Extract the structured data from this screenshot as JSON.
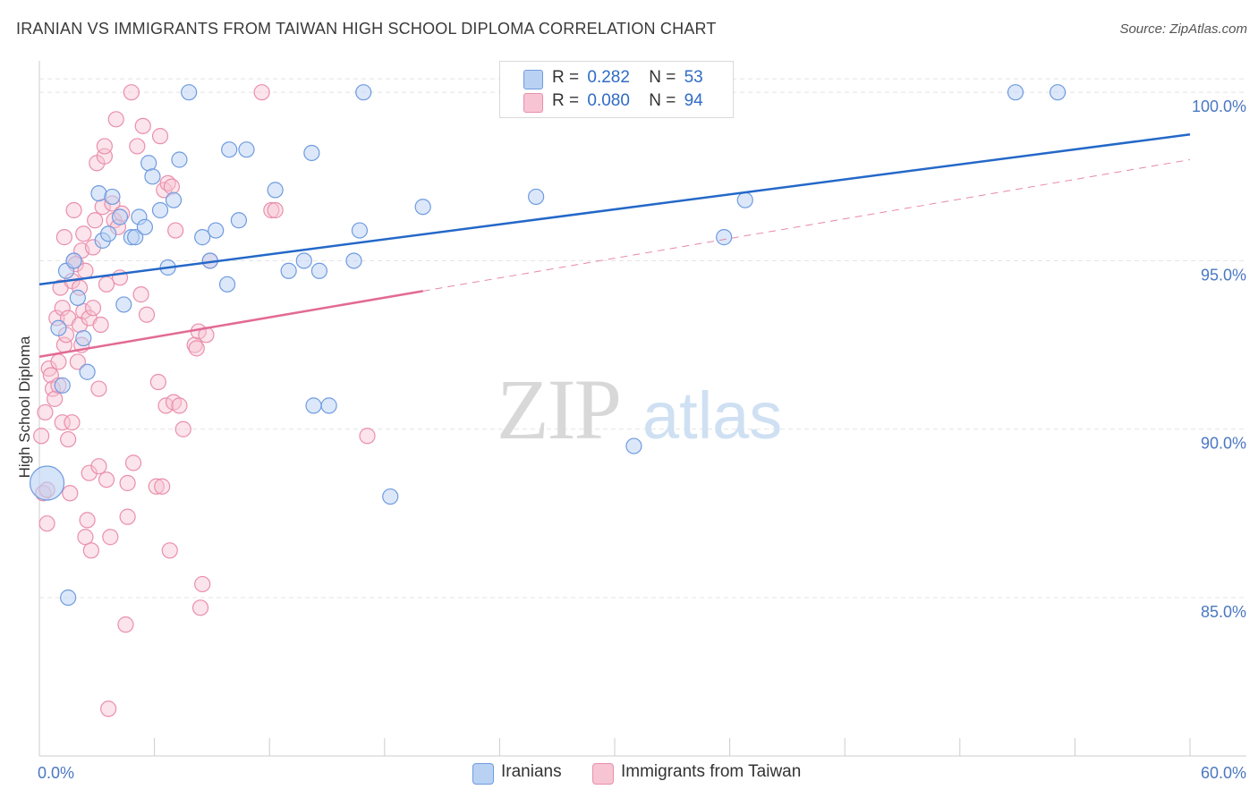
{
  "title": "IRANIAN VS IMMIGRANTS FROM TAIWAN HIGH SCHOOL DIPLOMA CORRELATION CHART",
  "source": "Source: ZipAtlas.com",
  "watermark": {
    "zip": "ZIP",
    "atlas": "atlas"
  },
  "legend": {
    "rows": [
      {
        "r_label": "R =",
        "r_value": "0.282",
        "n_label": "N =",
        "n_value": "53"
      },
      {
        "r_label": "R =",
        "r_value": "0.080",
        "n_label": "N =",
        "n_value": "94"
      }
    ]
  },
  "bottom_legend": {
    "iranians": "Iranians",
    "taiwan": "Immigrants from Taiwan"
  },
  "colors": {
    "blue_fill": "#b9d2f3",
    "blue_stroke": "#6f9be0",
    "blue_line": "#2468c8",
    "pink_fill": "#f7c4d3",
    "pink_stroke": "#ea8fac",
    "pink_line": "#e26a94",
    "grid": "#e4e4e4",
    "axis": "#cccccc",
    "tick_text": "#4a78c2"
  },
  "chart_data": {
    "type": "scatter",
    "title": "IRANIAN VS IMMIGRANTS FROM TAIWAN HIGH SCHOOL DIPLOMA CORRELATION CHART",
    "xlabel": "",
    "ylabel": "High School Diploma",
    "xlim": [
      0,
      60
    ],
    "ylim": [
      80.3,
      101.2
    ],
    "x_tick_labels": [
      "0.0%",
      "60.0%"
    ],
    "y_ticks": [
      85,
      90,
      95,
      100
    ],
    "y_tick_labels": [
      "85.0%",
      "90.0%",
      "95.0%",
      "100.0%"
    ],
    "legend_position": "top-center",
    "series": [
      {
        "name": "Iranians",
        "r": 0.282,
        "n": 53,
        "trend": {
          "x0": 0,
          "y0": 94.3,
          "x1": 60,
          "y1": 98.75,
          "dashed_to": null
        },
        "points": [
          [
            0.4,
            88.4
          ],
          [
            1.4,
            94.7
          ],
          [
            1.0,
            93.0
          ],
          [
            1.2,
            91.3
          ],
          [
            1.5,
            85.0
          ],
          [
            1.8,
            95.0
          ],
          [
            2.0,
            93.9
          ],
          [
            2.3,
            92.7
          ],
          [
            2.5,
            91.7
          ],
          [
            3.1,
            97.0
          ],
          [
            3.3,
            95.6
          ],
          [
            3.6,
            95.8
          ],
          [
            3.8,
            96.9
          ],
          [
            4.2,
            96.3
          ],
          [
            4.4,
            93.7
          ],
          [
            4.8,
            95.7
          ],
          [
            5.0,
            95.7
          ],
          [
            5.2,
            96.3
          ],
          [
            5.5,
            96.0
          ],
          [
            5.7,
            97.9
          ],
          [
            5.9,
            97.5
          ],
          [
            6.3,
            96.5
          ],
          [
            6.7,
            94.8
          ],
          [
            7.0,
            96.8
          ],
          [
            7.3,
            98.0
          ],
          [
            7.8,
            100.0
          ],
          [
            8.5,
            95.7
          ],
          [
            8.9,
            95.0
          ],
          [
            9.2,
            95.9
          ],
          [
            9.8,
            94.3
          ],
          [
            9.9,
            98.3
          ],
          [
            10.4,
            96.2
          ],
          [
            10.8,
            98.3
          ],
          [
            12.3,
            97.1
          ],
          [
            13.0,
            94.7
          ],
          [
            13.8,
            95.0
          ],
          [
            14.2,
            98.2
          ],
          [
            14.3,
            90.7
          ],
          [
            14.6,
            94.7
          ],
          [
            15.1,
            90.7
          ],
          [
            16.4,
            95.0
          ],
          [
            16.7,
            95.9
          ],
          [
            16.9,
            100.0
          ],
          [
            18.3,
            88.0
          ],
          [
            20.0,
            96.6
          ],
          [
            25.9,
            96.9
          ],
          [
            31.0,
            89.5
          ],
          [
            35.7,
            95.7
          ],
          [
            36.8,
            96.8
          ],
          [
            50.9,
            100.0
          ],
          [
            53.1,
            100.0
          ]
        ]
      },
      {
        "name": "Immigrants from Taiwan",
        "r": 0.08,
        "n": 94,
        "trend": {
          "x0": 0,
          "y0": 92.15,
          "x1": 20,
          "y1": 94.1,
          "dashed_to": {
            "x": 60,
            "y": 98.0
          }
        },
        "points": [
          [
            0.1,
            89.8
          ],
          [
            0.2,
            88.1
          ],
          [
            0.3,
            90.5
          ],
          [
            0.4,
            88.2
          ],
          [
            0.4,
            87.2
          ],
          [
            0.5,
            91.8
          ],
          [
            0.6,
            91.6
          ],
          [
            0.7,
            91.2
          ],
          [
            0.8,
            90.9
          ],
          [
            0.9,
            93.3
          ],
          [
            1.0,
            91.3
          ],
          [
            1.0,
            92.0
          ],
          [
            1.1,
            94.2
          ],
          [
            1.2,
            93.6
          ],
          [
            1.2,
            90.2
          ],
          [
            1.3,
            95.7
          ],
          [
            1.3,
            92.5
          ],
          [
            1.4,
            92.8
          ],
          [
            1.5,
            93.3
          ],
          [
            1.5,
            89.7
          ],
          [
            1.6,
            88.1
          ],
          [
            1.7,
            94.4
          ],
          [
            1.7,
            90.2
          ],
          [
            1.8,
            95.0
          ],
          [
            1.8,
            96.5
          ],
          [
            1.9,
            94.9
          ],
          [
            2.0,
            92.0
          ],
          [
            2.1,
            94.2
          ],
          [
            2.1,
            93.1
          ],
          [
            2.2,
            95.3
          ],
          [
            2.2,
            92.5
          ],
          [
            2.3,
            95.8
          ],
          [
            2.3,
            93.5
          ],
          [
            2.4,
            94.7
          ],
          [
            2.4,
            86.8
          ],
          [
            2.5,
            87.3
          ],
          [
            2.6,
            93.3
          ],
          [
            2.6,
            88.7
          ],
          [
            2.7,
            86.4
          ],
          [
            2.8,
            95.4
          ],
          [
            2.8,
            93.6
          ],
          [
            2.9,
            96.2
          ],
          [
            3.0,
            97.9
          ],
          [
            3.1,
            91.2
          ],
          [
            3.1,
            88.9
          ],
          [
            3.2,
            93.1
          ],
          [
            3.3,
            96.6
          ],
          [
            3.4,
            98.1
          ],
          [
            3.4,
            98.4
          ],
          [
            3.5,
            94.3
          ],
          [
            3.5,
            88.5
          ],
          [
            3.6,
            81.7
          ],
          [
            3.7,
            86.8
          ],
          [
            3.8,
            96.7
          ],
          [
            3.9,
            96.2
          ],
          [
            4.0,
            99.2
          ],
          [
            4.1,
            96.0
          ],
          [
            4.2,
            94.5
          ],
          [
            4.3,
            96.4
          ],
          [
            4.5,
            84.2
          ],
          [
            4.6,
            88.4
          ],
          [
            4.6,
            87.4
          ],
          [
            4.8,
            100.0
          ],
          [
            4.9,
            89.0
          ],
          [
            5.1,
            98.4
          ],
          [
            5.3,
            94.0
          ],
          [
            5.4,
            99.0
          ],
          [
            5.6,
            93.4
          ],
          [
            6.1,
            88.3
          ],
          [
            6.2,
            91.4
          ],
          [
            6.3,
            98.7
          ],
          [
            6.4,
            88.3
          ],
          [
            6.5,
            97.1
          ],
          [
            6.6,
            90.7
          ],
          [
            6.7,
            97.3
          ],
          [
            6.8,
            86.4
          ],
          [
            6.9,
            97.2
          ],
          [
            7.0,
            90.8
          ],
          [
            7.1,
            95.9
          ],
          [
            7.3,
            90.7
          ],
          [
            7.5,
            90.0
          ],
          [
            8.1,
            92.5
          ],
          [
            8.2,
            92.4
          ],
          [
            8.3,
            92.9
          ],
          [
            8.4,
            84.7
          ],
          [
            8.5,
            85.4
          ],
          [
            8.7,
            92.8
          ],
          [
            8.9,
            95.0
          ],
          [
            11.6,
            100.0
          ],
          [
            12.1,
            96.5
          ],
          [
            12.3,
            96.5
          ],
          [
            17.1,
            89.8
          ]
        ]
      }
    ]
  }
}
